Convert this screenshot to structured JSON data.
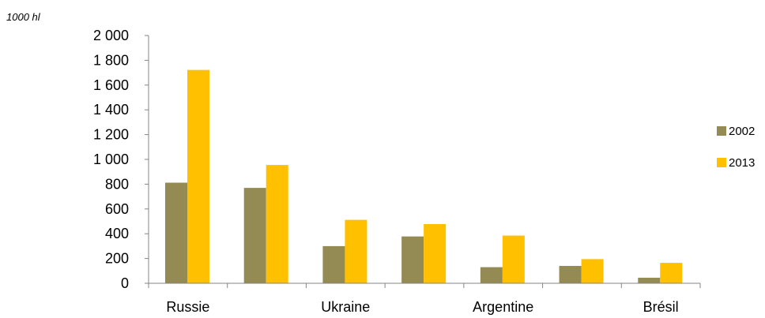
{
  "chart_data": {
    "type": "bar",
    "unit_label": "1000 hl",
    "categories": [
      "Russie",
      "",
      "Ukraine",
      "",
      "Argentine",
      "",
      "Brésil"
    ],
    "series": [
      {
        "name": "2002",
        "color": "#948A54",
        "values": [
          812,
          770,
          300,
          378,
          130,
          140,
          45
        ]
      },
      {
        "name": "2013",
        "color": "#FFC000",
        "values": [
          1722,
          955,
          512,
          478,
          385,
          195,
          165
        ]
      }
    ],
    "ylim": [
      0,
      2000
    ],
    "yticks": [
      0,
      200,
      400,
      600,
      800,
      1000,
      1200,
      1400,
      1600,
      1800,
      2000
    ],
    "ytick_labels": [
      "0",
      "200",
      "400",
      "600",
      "800",
      "1 000",
      "1 200",
      "1 400",
      "1 600",
      "1 800",
      "2 000"
    ],
    "grid": false,
    "legend": "right"
  }
}
